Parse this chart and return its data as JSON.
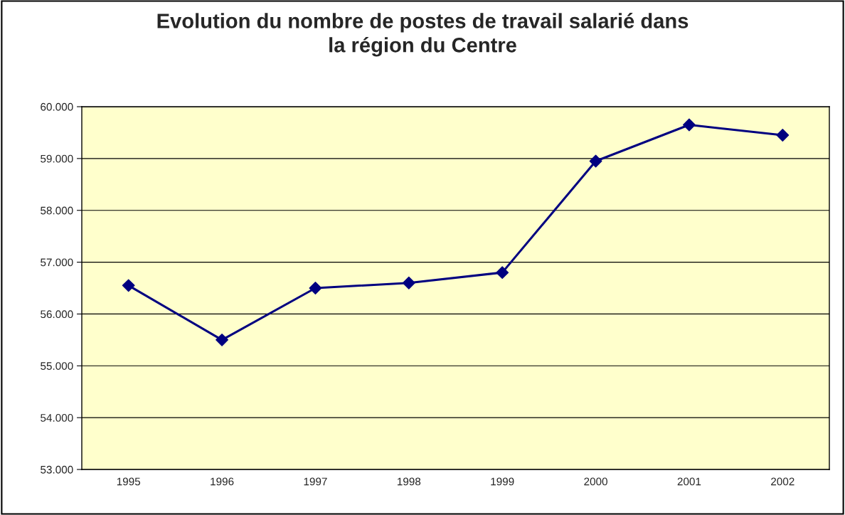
{
  "chart_data": {
    "type": "line",
    "title": "Evolution du nombre de postes de travail salarié dans\nla région du Centre",
    "categories": [
      "1995",
      "1996",
      "1997",
      "1998",
      "1999",
      "2000",
      "2001",
      "2002"
    ],
    "series": [
      {
        "color": "#000080",
        "values": [
          56550,
          55500,
          56500,
          56600,
          56800,
          58950,
          59650,
          59450
        ]
      }
    ],
    "ylim": [
      53000,
      60000
    ],
    "yticks": [
      {
        "value": 53000,
        "label": "53.000"
      },
      {
        "value": 54000,
        "label": "54.000"
      },
      {
        "value": 55000,
        "label": "55.000"
      },
      {
        "value": 56000,
        "label": "56.000"
      },
      {
        "value": 57000,
        "label": "57.000"
      },
      {
        "value": 58000,
        "label": "58.000"
      },
      {
        "value": 59000,
        "label": "59.000"
      },
      {
        "value": 60000,
        "label": "60.000"
      }
    ],
    "grid": "y",
    "marker": "diamond",
    "line_style": "solid",
    "legend": false
  }
}
